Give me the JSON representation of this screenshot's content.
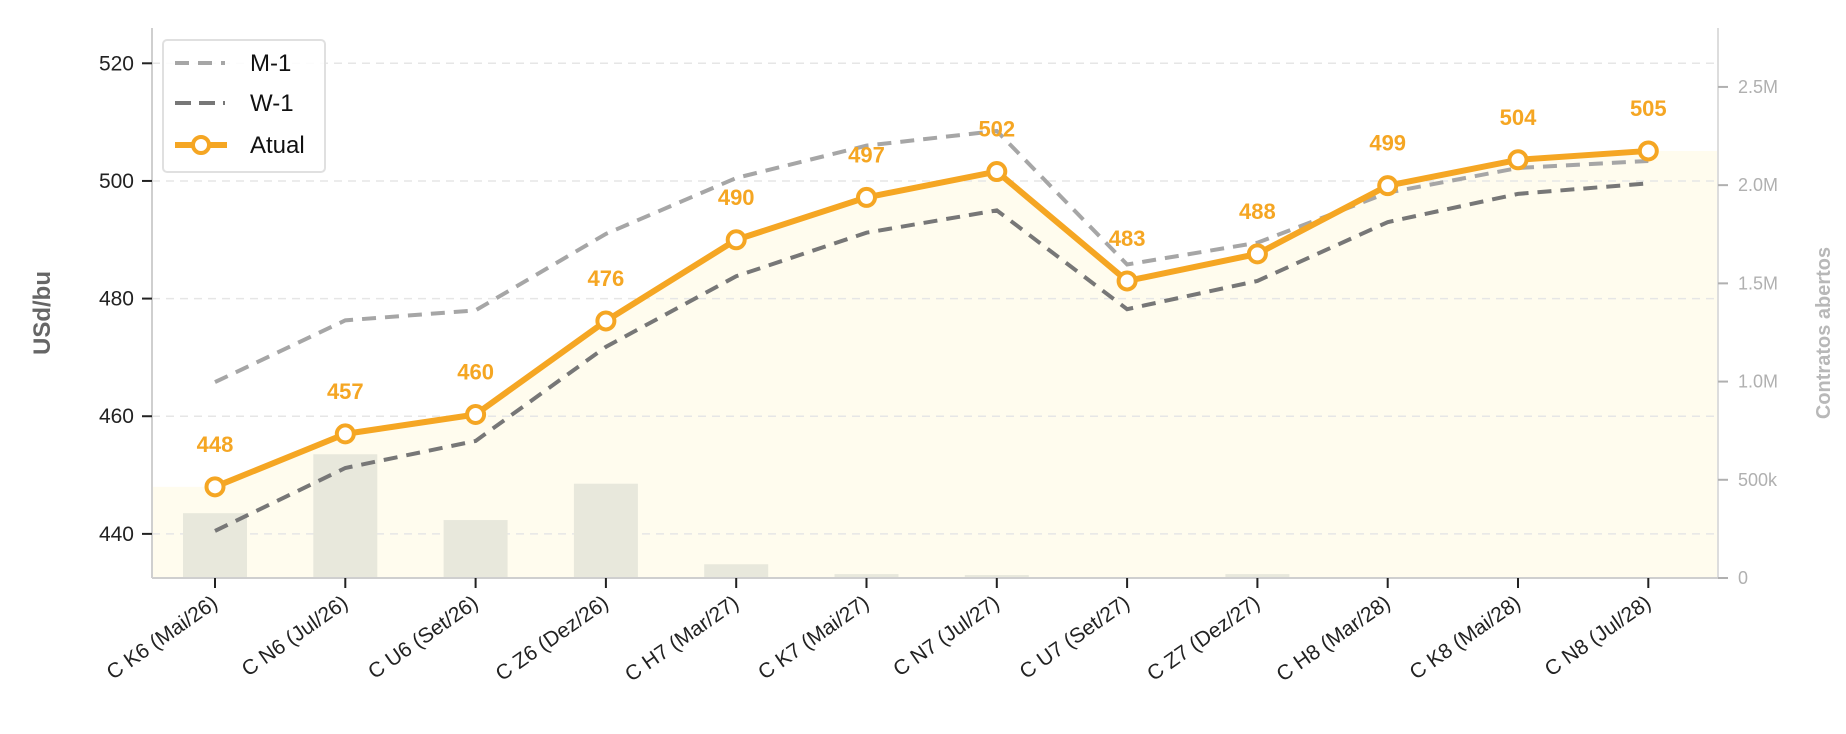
{
  "chart_data": {
    "type": "line",
    "title": "",
    "xlabel": "",
    "ylabel": "USd/bu",
    "y2label": "Contratos abertos",
    "categories": [
      "C K6 (Mai/26)",
      "C N6 (Jul/26)",
      "C U6 (Set/26)",
      "C Z6 (Dez/26)",
      "C H7 (Mar/27)",
      "C K7 (Mai/27)",
      "C N7 (Jul/27)",
      "C U7 (Set/27)",
      "C Z7 (Dez/27)",
      "C H8 (Mar/28)",
      "C K8 (Mai/28)",
      "C N8 (Jul/28)"
    ],
    "ylim": [
      432.5,
      526
    ],
    "yticks": [
      440,
      460,
      480,
      500,
      520
    ],
    "y2lim": [
      0,
      2800000
    ],
    "y2ticks": [
      0,
      500000,
      1000000,
      1500000,
      2000000,
      2500000
    ],
    "y2ticklabels": [
      "0",
      "500k",
      "1.0M",
      "1.5M",
      "2.0M",
      "2.5M"
    ],
    "grid": true,
    "legend_position": "top-left",
    "series": [
      {
        "name": "M-1",
        "style": "dashed",
        "color": "#a6a6a6",
        "values": [
          465.8,
          476.3,
          478.0,
          491.0,
          500.5,
          506.0,
          508.5,
          485.8,
          489.5,
          498.0,
          502.2,
          503.4
        ]
      },
      {
        "name": "W-1",
        "style": "dashed",
        "color": "#777777",
        "values": [
          440.5,
          451.2,
          455.8,
          471.8,
          483.8,
          491.2,
          495.0,
          478.2,
          483.0,
          493.0,
          497.8,
          499.6
        ]
      },
      {
        "name": "Atual",
        "style": "solid-marker",
        "color": "#f5a623",
        "values": [
          448,
          457,
          460.3,
          476.2,
          490,
          497.2,
          501.6,
          483,
          487.6,
          499.2,
          503.6,
          505.1
        ],
        "labels": [
          "448",
          "457",
          "460",
          "476",
          "490",
          "497",
          "502",
          "483",
          "488",
          "499",
          "504",
          "505"
        ]
      }
    ],
    "open_interest": {
      "color": "#e8e8dc",
      "values": [
        330000,
        630000,
        295000,
        480000,
        70000,
        20000,
        15000,
        5000,
        20000,
        5000,
        5000,
        3000
      ]
    },
    "area_color": "#fffcee"
  }
}
